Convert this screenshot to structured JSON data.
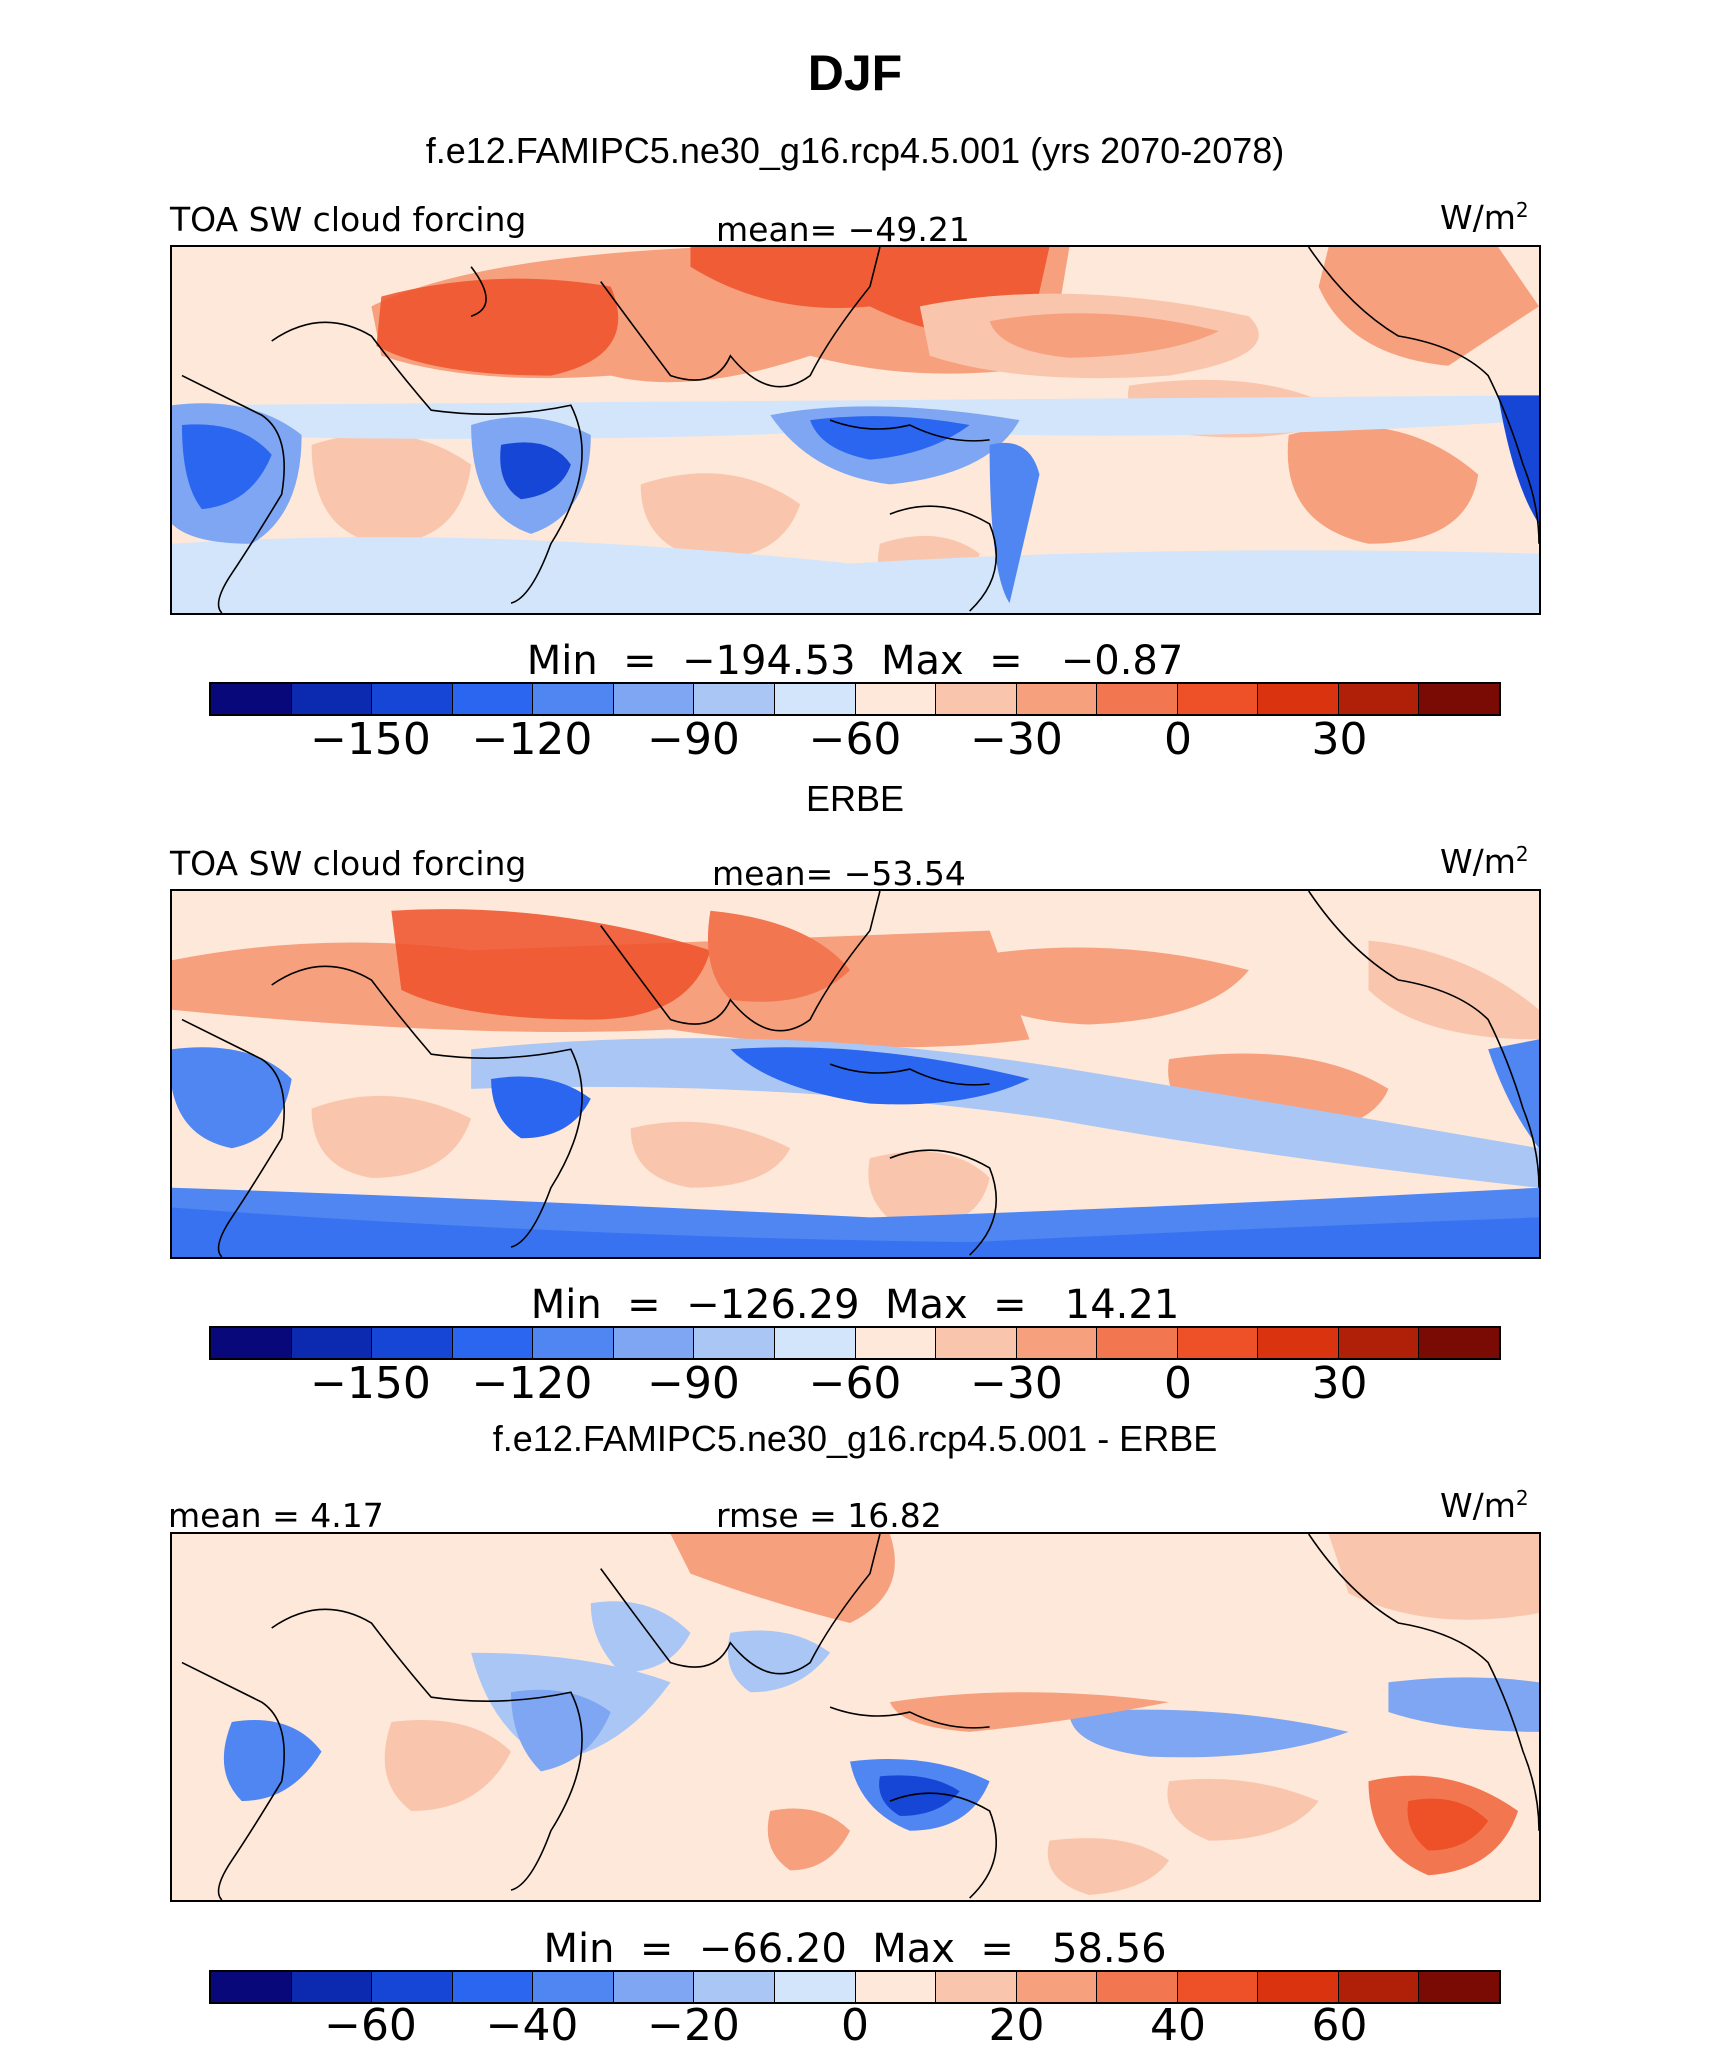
{
  "figure": {
    "title": "DJF",
    "units": "W/m",
    "units_sup": "2"
  },
  "palette": [
    "#08087a",
    "#0b2ab0",
    "#1646d6",
    "#2a66f0",
    "#4f86f2",
    "#7ea6f2",
    "#a9c6f5",
    "#d3e5fa",
    "#fde8d9",
    "#f9c6ad",
    "#f6a07e",
    "#f27650",
    "#ee5028",
    "#d93310",
    "#b01f08",
    "#7a0a04"
  ],
  "panels": [
    {
      "id": "model",
      "header": "f.e12.FAMIPC5.ne30_g16.rcp4.5.001 (yrs 2070-2078)",
      "left_label": "TOA SW cloud forcing",
      "center_label": "mean=  −49.21",
      "minmax": "Min  =  −194.53  Max  =   −0.87",
      "ticks": [
        "−150",
        "−120",
        "−90",
        "−60",
        "−30",
        "0",
        "30"
      ]
    },
    {
      "id": "obs",
      "header": "ERBE",
      "left_label": "TOA SW cloud forcing",
      "center_label": "mean=  −53.54",
      "minmax": "Min  =  −126.29  Max  =   14.21",
      "ticks": [
        "−150",
        "−120",
        "−90",
        "−60",
        "−30",
        "0",
        "30"
      ]
    },
    {
      "id": "diff",
      "header": "f.e12.FAMIPC5.ne30_g16.rcp4.5.001 - ERBE",
      "left_label": "mean =   4.17",
      "center_label": "rmse  =   16.82",
      "minmax": "Min  =  −66.20  Max  =   58.56",
      "ticks": [
        "−60",
        "−40",
        "−20",
        "0",
        "20",
        "40",
        "60"
      ]
    }
  ]
}
